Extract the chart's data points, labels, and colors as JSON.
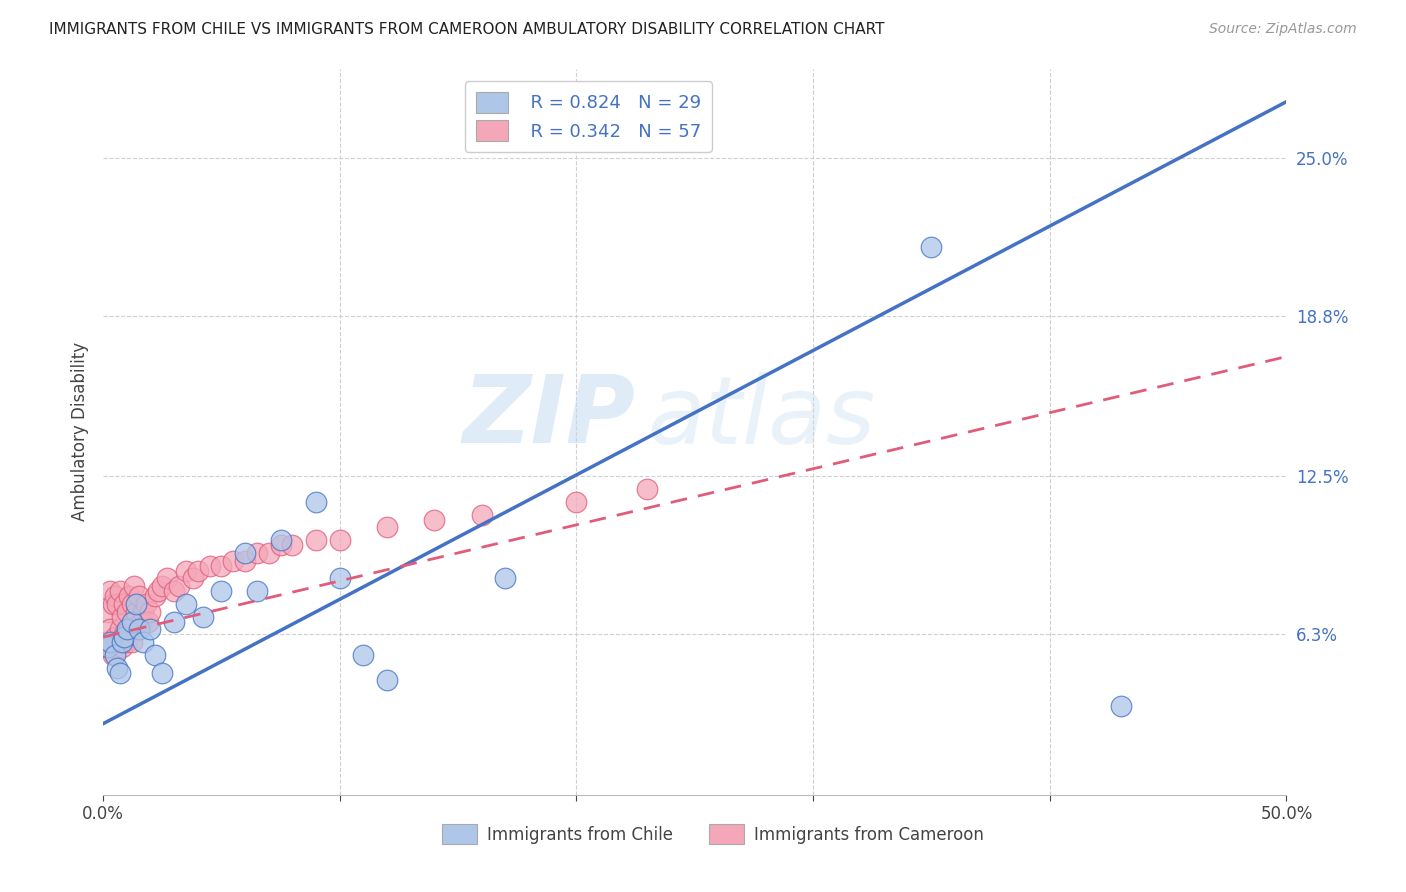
{
  "title": "IMMIGRANTS FROM CHILE VS IMMIGRANTS FROM CAMEROON AMBULATORY DISABILITY CORRELATION CHART",
  "source": "Source: ZipAtlas.com",
  "ylabel": "Ambulatory Disability",
  "xlim": [
    0.0,
    0.5
  ],
  "ylim": [
    0.0,
    0.285
  ],
  "yticks_right": [
    0.063,
    0.125,
    0.188,
    0.25
  ],
  "ytick_right_labels": [
    "6.3%",
    "12.5%",
    "18.8%",
    "25.0%"
  ],
  "chile_color": "#aec6e8",
  "cameroon_color": "#f4a7b9",
  "chile_line_color": "#4472c4",
  "cameroon_line_color": "#e05c7a",
  "chile_R": 0.824,
  "chile_N": 29,
  "cameroon_R": 0.342,
  "cameroon_N": 57,
  "watermark_zip": "ZIP",
  "watermark_atlas": "atlas",
  "background_color": "#ffffff",
  "grid_color": "#d0d0d0",
  "chile_scatter_x": [
    0.002,
    0.003,
    0.005,
    0.006,
    0.007,
    0.008,
    0.009,
    0.01,
    0.012,
    0.014,
    0.015,
    0.017,
    0.02,
    0.022,
    0.025,
    0.03,
    0.035,
    0.042,
    0.05,
    0.06,
    0.065,
    0.075,
    0.09,
    0.1,
    0.11,
    0.12,
    0.17,
    0.35,
    0.43
  ],
  "chile_scatter_y": [
    0.058,
    0.06,
    0.055,
    0.05,
    0.048,
    0.06,
    0.062,
    0.065,
    0.068,
    0.075,
    0.065,
    0.06,
    0.065,
    0.055,
    0.048,
    0.068,
    0.075,
    0.07,
    0.08,
    0.095,
    0.08,
    0.1,
    0.115,
    0.085,
    0.055,
    0.045,
    0.085,
    0.215,
    0.035
  ],
  "cameroon_scatter_x": [
    0.001,
    0.002,
    0.002,
    0.003,
    0.003,
    0.004,
    0.004,
    0.005,
    0.005,
    0.006,
    0.006,
    0.007,
    0.007,
    0.008,
    0.008,
    0.009,
    0.009,
    0.01,
    0.01,
    0.011,
    0.011,
    0.012,
    0.012,
    0.013,
    0.013,
    0.014,
    0.015,
    0.015,
    0.016,
    0.017,
    0.018,
    0.019,
    0.02,
    0.022,
    0.023,
    0.025,
    0.027,
    0.03,
    0.032,
    0.035,
    0.038,
    0.04,
    0.045,
    0.05,
    0.055,
    0.06,
    0.065,
    0.07,
    0.075,
    0.08,
    0.09,
    0.1,
    0.12,
    0.14,
    0.16,
    0.2,
    0.23
  ],
  "cameroon_scatter_y": [
    0.06,
    0.058,
    0.072,
    0.065,
    0.08,
    0.055,
    0.075,
    0.062,
    0.078,
    0.06,
    0.075,
    0.065,
    0.08,
    0.058,
    0.07,
    0.063,
    0.075,
    0.06,
    0.072,
    0.065,
    0.078,
    0.06,
    0.075,
    0.068,
    0.082,
    0.072,
    0.065,
    0.078,
    0.068,
    0.072,
    0.075,
    0.068,
    0.072,
    0.078,
    0.08,
    0.082,
    0.085,
    0.08,
    0.082,
    0.088,
    0.085,
    0.088,
    0.09,
    0.09,
    0.092,
    0.092,
    0.095,
    0.095,
    0.098,
    0.098,
    0.1,
    0.1,
    0.105,
    0.108,
    0.11,
    0.115,
    0.12
  ],
  "chile_line_x0": 0.0,
  "chile_line_y0": 0.028,
  "chile_line_x1": 0.5,
  "chile_line_y1": 0.272,
  "cameroon_line_x0": 0.0,
  "cameroon_line_y0": 0.062,
  "cameroon_line_x1": 0.5,
  "cameroon_line_y1": 0.172
}
